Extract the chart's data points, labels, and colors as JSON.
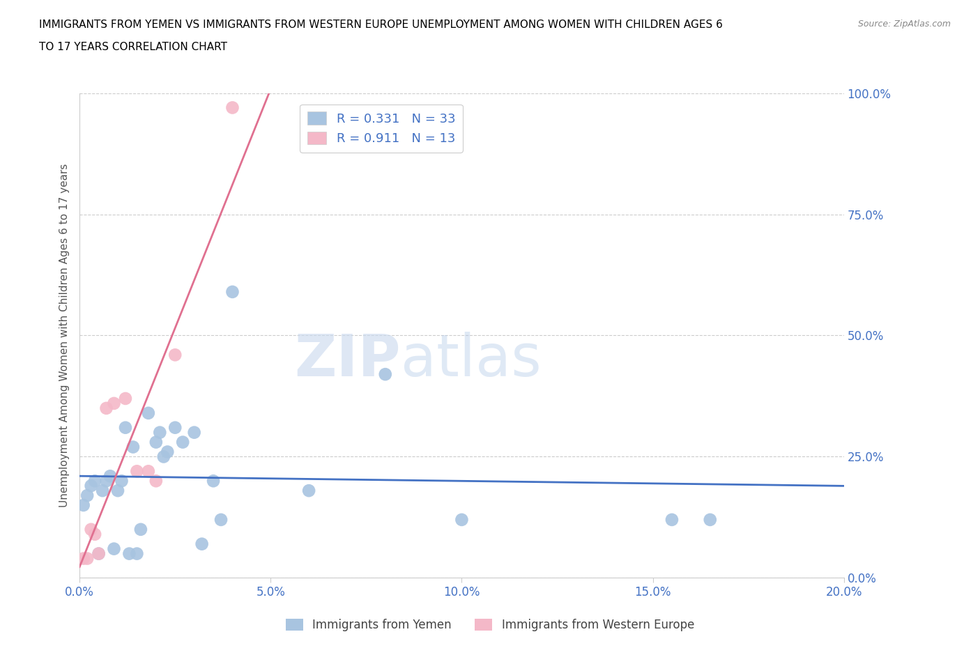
{
  "title_line1": "IMMIGRANTS FROM YEMEN VS IMMIGRANTS FROM WESTERN EUROPE UNEMPLOYMENT AMONG WOMEN WITH CHILDREN AGES 6",
  "title_line2": "TO 17 YEARS CORRELATION CHART",
  "source": "Source: ZipAtlas.com",
  "ylabel": "Unemployment Among Women with Children Ages 6 to 17 years",
  "xlim": [
    0.0,
    0.2
  ],
  "ylim": [
    0.0,
    1.0
  ],
  "xticks": [
    0.0,
    0.05,
    0.1,
    0.15,
    0.2
  ],
  "xticklabels": [
    "0.0%",
    "5.0%",
    "10.0%",
    "15.0%",
    "20.0%"
  ],
  "yticks": [
    0.0,
    0.25,
    0.5,
    0.75,
    1.0
  ],
  "yticklabels": [
    "0.0%",
    "25.0%",
    "50.0%",
    "75.0%",
    "100.0%"
  ],
  "yemen_color": "#a8c4e0",
  "western_europe_color": "#f4b8c8",
  "yemen_line_color": "#4472c4",
  "western_europe_line_color": "#e07090",
  "legend_text_color": "#4472c4",
  "R_yemen": 0.331,
  "N_yemen": 33,
  "R_western": 0.911,
  "N_western": 13,
  "yemen_x": [
    0.001,
    0.002,
    0.003,
    0.004,
    0.005,
    0.006,
    0.007,
    0.008,
    0.009,
    0.01,
    0.011,
    0.012,
    0.013,
    0.014,
    0.015,
    0.016,
    0.018,
    0.02,
    0.021,
    0.022,
    0.023,
    0.025,
    0.027,
    0.03,
    0.032,
    0.035,
    0.037,
    0.04,
    0.06,
    0.08,
    0.1,
    0.155,
    0.165
  ],
  "yemen_y": [
    0.15,
    0.17,
    0.19,
    0.2,
    0.05,
    0.18,
    0.2,
    0.21,
    0.06,
    0.18,
    0.2,
    0.31,
    0.05,
    0.27,
    0.05,
    0.1,
    0.34,
    0.28,
    0.3,
    0.25,
    0.26,
    0.31,
    0.28,
    0.3,
    0.07,
    0.2,
    0.12,
    0.59,
    0.18,
    0.42,
    0.12,
    0.12,
    0.12
  ],
  "western_x": [
    0.001,
    0.002,
    0.003,
    0.004,
    0.005,
    0.007,
    0.009,
    0.012,
    0.015,
    0.018,
    0.02,
    0.025,
    0.04
  ],
  "western_y": [
    0.04,
    0.04,
    0.1,
    0.09,
    0.05,
    0.35,
    0.36,
    0.37,
    0.22,
    0.22,
    0.2,
    0.46,
    0.97
  ],
  "watermark_zip": "ZIP",
  "watermark_atlas": "atlas",
  "background_color": "#ffffff",
  "grid_color": "#cccccc"
}
